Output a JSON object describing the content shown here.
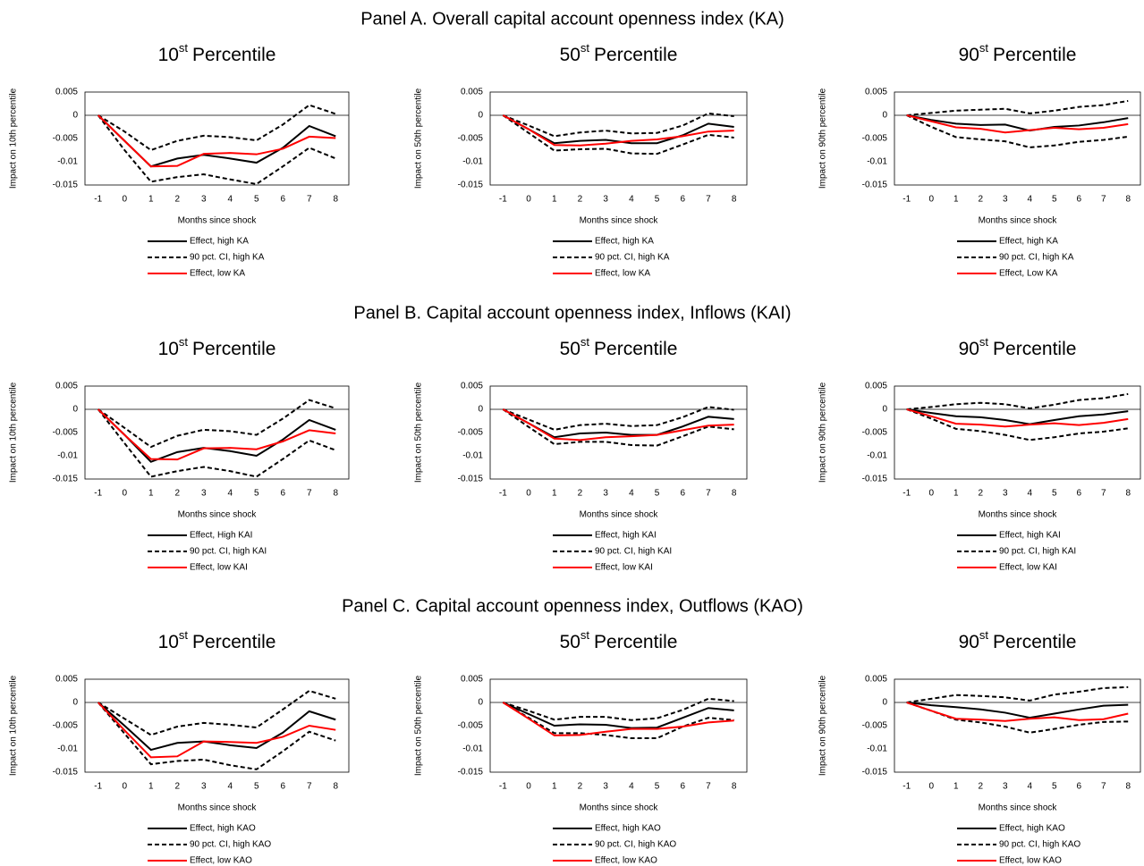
{
  "panels": [
    "Panel A. Overall capital account openness index (KA)",
    "Panel B. Capital account openness index, Inflows (KAI)",
    "Panel C. Capital account openness index, Outflows (KAO)"
  ],
  "chart_data": [
    {
      "type": "line",
      "title": [
        "10",
        "st",
        "Percentile"
      ],
      "x_label": "Months since shock",
      "y_label": "Impact on 10th percentile",
      "x": [
        -1,
        0,
        1,
        2,
        3,
        4,
        5,
        6,
        7,
        8
      ],
      "xlim": [
        -1.5,
        8.5
      ],
      "xticks": [
        -1,
        0,
        1,
        2,
        3,
        4,
        5,
        6,
        7,
        8
      ],
      "ylim": [
        -0.015,
        0.005
      ],
      "yticks": [
        0.005,
        0,
        -0.005,
        -0.01,
        -0.015
      ],
      "series": [
        {
          "name": "Effect, high KA",
          "color": "#000000",
          "style": "solid",
          "values": [
            0,
            -0.0055,
            -0.011,
            -0.0093,
            -0.0085,
            -0.0093,
            -0.0102,
            -0.007,
            -0.0023,
            -0.0045
          ]
        },
        {
          "name": "90 pct. CI, high KA",
          "color": "#000000",
          "style": "dashed",
          "values": [
            0,
            -0.0035,
            -0.0075,
            -0.0055,
            -0.0044,
            -0.0047,
            -0.0054,
            -0.002,
            0.0022,
            0.0003
          ],
          "lower": [
            0,
            -0.0075,
            -0.0143,
            -0.0133,
            -0.0127,
            -0.0138,
            -0.0148,
            -0.011,
            -0.007,
            -0.0093
          ]
        },
        {
          "name": "Effect, low KA",
          "color": "#ff0000",
          "style": "solid",
          "values": [
            0,
            -0.0055,
            -0.011,
            -0.0109,
            -0.0083,
            -0.0081,
            -0.0084,
            -0.0072,
            -0.0046,
            -0.0049
          ]
        }
      ]
    },
    {
      "type": "line",
      "title": [
        "50",
        "st",
        "Percentile"
      ],
      "x_label": "Months since shock",
      "y_label": "Impact on 50th percentile",
      "x": [
        -1,
        0,
        1,
        2,
        3,
        4,
        5,
        6,
        7,
        8
      ],
      "xlim": [
        -1.5,
        8.5
      ],
      "xticks": [
        -1,
        0,
        1,
        2,
        3,
        4,
        5,
        6,
        7,
        8
      ],
      "ylim": [
        -0.015,
        0.005
      ],
      "yticks": [
        0.005,
        0,
        -0.005,
        -0.01,
        -0.015
      ],
      "series": [
        {
          "name": "Effect, high KA",
          "color": "#000000",
          "style": "solid",
          "values": [
            0,
            -0.003,
            -0.006,
            -0.0055,
            -0.0053,
            -0.006,
            -0.006,
            -0.0043,
            -0.0018,
            -0.0025
          ]
        },
        {
          "name": "90 pct. CI, high KA",
          "color": "#000000",
          "style": "dashed",
          "values": [
            0,
            -0.0022,
            -0.0045,
            -0.0037,
            -0.0033,
            -0.0039,
            -0.0038,
            -0.0022,
            0.0004,
            -0.0002
          ],
          "lower": [
            0,
            -0.0038,
            -0.0076,
            -0.0073,
            -0.0072,
            -0.0082,
            -0.0083,
            -0.0063,
            -0.0042,
            -0.0048
          ]
        },
        {
          "name": "Effect, low KA",
          "color": "#ff0000",
          "style": "solid",
          "values": [
            0,
            -0.003,
            -0.0064,
            -0.0065,
            -0.0061,
            -0.0055,
            -0.0052,
            -0.0045,
            -0.0035,
            -0.0033
          ]
        }
      ]
    },
    {
      "type": "line",
      "title": [
        "90",
        "st",
        "Percentile"
      ],
      "x_label": "Months since shock",
      "y_label": "Impact on 90th percentile",
      "x": [
        -1,
        0,
        1,
        2,
        3,
        4,
        5,
        6,
        7,
        8
      ],
      "xlim": [
        -1.5,
        8.5
      ],
      "xticks": [
        -1,
        0,
        1,
        2,
        3,
        4,
        5,
        6,
        7,
        8
      ],
      "ylim": [
        -0.015,
        0.005
      ],
      "yticks": [
        0.005,
        0,
        -0.005,
        -0.01,
        -0.015
      ],
      "series": [
        {
          "name": "Effect, high KA",
          "color": "#000000",
          "style": "solid",
          "values": [
            0,
            -0.001,
            -0.0018,
            -0.0021,
            -0.002,
            -0.0033,
            -0.0025,
            -0.0022,
            -0.0015,
            -0.0006
          ]
        },
        {
          "name": "90 pct. CI, high KA",
          "color": "#000000",
          "style": "dashed",
          "values": [
            0,
            0.0005,
            0.001,
            0.0012,
            0.0014,
            0.0004,
            0.001,
            0.0018,
            0.0022,
            0.0031
          ],
          "lower": [
            0,
            -0.0025,
            -0.0047,
            -0.0052,
            -0.0056,
            -0.0069,
            -0.0065,
            -0.0057,
            -0.0053,
            -0.0046
          ]
        },
        {
          "name": "Effect, Low KA",
          "color": "#ff0000",
          "style": "solid",
          "values": [
            0,
            -0.0013,
            -0.0026,
            -0.0029,
            -0.0037,
            -0.0032,
            -0.0027,
            -0.003,
            -0.0027,
            -0.0019
          ]
        }
      ]
    },
    {
      "type": "line",
      "title": [
        "10",
        "st",
        "Percentile"
      ],
      "x_label": "Months since shock",
      "y_label": "Impact on 10th percentile",
      "x": [
        -1,
        0,
        1,
        2,
        3,
        4,
        5,
        6,
        7,
        8
      ],
      "xlim": [
        -1.5,
        8.5
      ],
      "xticks": [
        -1,
        0,
        1,
        2,
        3,
        4,
        5,
        6,
        7,
        8
      ],
      "ylim": [
        -0.015,
        0.005
      ],
      "yticks": [
        0.005,
        0,
        -0.005,
        -0.01,
        -0.015
      ],
      "series": [
        {
          "name": "Effect, High KAI",
          "color": "#000000",
          "style": "solid",
          "values": [
            0,
            -0.0055,
            -0.0113,
            -0.0092,
            -0.0083,
            -0.009,
            -0.01,
            -0.0065,
            -0.0023,
            -0.0044
          ]
        },
        {
          "name": "90 pct. CI, high KAI",
          "color": "#000000",
          "style": "dashed",
          "values": [
            0,
            -0.004,
            -0.0081,
            -0.0057,
            -0.0044,
            -0.0047,
            -0.0055,
            -0.002,
            0.002,
            0.0002
          ],
          "lower": [
            0,
            -0.0073,
            -0.0145,
            -0.0133,
            -0.0124,
            -0.0133,
            -0.0145,
            -0.0107,
            -0.0067,
            -0.0088
          ]
        },
        {
          "name": "Effect, low KAI",
          "color": "#ff0000",
          "style": "solid",
          "values": [
            0,
            -0.0055,
            -0.0107,
            -0.0108,
            -0.0084,
            -0.0083,
            -0.0086,
            -0.0069,
            -0.0045,
            -0.0052
          ]
        }
      ]
    },
    {
      "type": "line",
      "title": [
        "50",
        "st",
        "Percentile"
      ],
      "x_label": "Months since shock",
      "y_label": "Impact on 50th percentile",
      "x": [
        -1,
        0,
        1,
        2,
        3,
        4,
        5,
        6,
        7,
        8
      ],
      "xlim": [
        -1.5,
        8.5
      ],
      "xticks": [
        -1,
        0,
        1,
        2,
        3,
        4,
        5,
        6,
        7,
        8
      ],
      "ylim": [
        -0.015,
        0.005
      ],
      "yticks": [
        0.005,
        0,
        -0.005,
        -0.01,
        -0.015
      ],
      "series": [
        {
          "name": "Effect, high KAI",
          "color": "#000000",
          "style": "solid",
          "values": [
            0,
            -0.003,
            -0.006,
            -0.0052,
            -0.005,
            -0.0055,
            -0.0055,
            -0.0037,
            -0.0016,
            -0.0021
          ]
        },
        {
          "name": "90 pct. CI, high KAI",
          "color": "#000000",
          "style": "dashed",
          "values": [
            0,
            -0.0022,
            -0.0044,
            -0.0034,
            -0.0031,
            -0.0036,
            -0.0034,
            -0.0017,
            0.0005,
            -0.0001
          ],
          "lower": [
            0,
            -0.0038,
            -0.0075,
            -0.007,
            -0.007,
            -0.0077,
            -0.0078,
            -0.0058,
            -0.0037,
            -0.0043
          ]
        },
        {
          "name": "Effect, low KAI",
          "color": "#ff0000",
          "style": "solid",
          "values": [
            0,
            -0.003,
            -0.0063,
            -0.0066,
            -0.006,
            -0.0058,
            -0.0055,
            -0.0045,
            -0.0035,
            -0.0033
          ]
        }
      ]
    },
    {
      "type": "line",
      "title": [
        "90",
        "st",
        "Percentile"
      ],
      "x_label": "Months since shock",
      "y_label": "Impact on 90th percentile",
      "x": [
        -1,
        0,
        1,
        2,
        3,
        4,
        5,
        6,
        7,
        8
      ],
      "xlim": [
        -1.5,
        8.5
      ],
      "xticks": [
        -1,
        0,
        1,
        2,
        3,
        4,
        5,
        6,
        7,
        8
      ],
      "ylim": [
        -0.015,
        0.005
      ],
      "yticks": [
        0.005,
        0,
        -0.005,
        -0.01,
        -0.015
      ],
      "series": [
        {
          "name": "Effect, high KAI",
          "color": "#000000",
          "style": "solid",
          "values": [
            0,
            -0.0008,
            -0.0015,
            -0.0017,
            -0.0023,
            -0.0032,
            -0.0023,
            -0.0015,
            -0.0011,
            -0.0004
          ]
        },
        {
          "name": "90 pct. CI, high KAI",
          "color": "#000000",
          "style": "dashed",
          "values": [
            0,
            0.0005,
            0.0011,
            0.0014,
            0.0011,
            0.0002,
            0.001,
            0.002,
            0.0024,
            0.0033
          ],
          "lower": [
            0,
            -0.002,
            -0.0042,
            -0.0047,
            -0.0055,
            -0.0066,
            -0.006,
            -0.0052,
            -0.0048,
            -0.0041
          ]
        },
        {
          "name": "Effect, low KAI",
          "color": "#ff0000",
          "style": "solid",
          "values": [
            0,
            -0.0015,
            -0.0031,
            -0.0033,
            -0.0037,
            -0.0033,
            -0.003,
            -0.0034,
            -0.0029,
            -0.0021
          ]
        }
      ]
    },
    {
      "type": "line",
      "title": [
        "10",
        "st",
        "Percentile"
      ],
      "x_label": "Months since shock",
      "y_label": "Impact on 10th percentile",
      "x": [
        -1,
        0,
        1,
        2,
        3,
        4,
        5,
        6,
        7,
        8
      ],
      "xlim": [
        -1.5,
        8.5
      ],
      "xticks": [
        -1,
        0,
        1,
        2,
        3,
        4,
        5,
        6,
        7,
        8
      ],
      "ylim": [
        -0.015,
        0.005
      ],
      "yticks": [
        0.005,
        0,
        -0.005,
        -0.01,
        -0.015
      ],
      "series": [
        {
          "name": "Effect, high KAO",
          "color": "#000000",
          "style": "solid",
          "values": [
            0,
            -0.005,
            -0.0102,
            -0.0087,
            -0.0084,
            -0.0092,
            -0.0098,
            -0.0065,
            -0.0019,
            -0.0037
          ]
        },
        {
          "name": "90 pct. CI, high KAO",
          "color": "#000000",
          "style": "dashed",
          "values": [
            0,
            -0.0035,
            -0.007,
            -0.0052,
            -0.0044,
            -0.0048,
            -0.0054,
            -0.0015,
            0.0025,
            0.0008
          ],
          "lower": [
            0,
            -0.0067,
            -0.0133,
            -0.0126,
            -0.0123,
            -0.0135,
            -0.0144,
            -0.0105,
            -0.0063,
            -0.0082
          ]
        },
        {
          "name": "Effect, low KAO",
          "color": "#ff0000",
          "style": "solid",
          "values": [
            0,
            -0.006,
            -0.0118,
            -0.0116,
            -0.0084,
            -0.0085,
            -0.0087,
            -0.0074,
            -0.005,
            -0.0059
          ]
        }
      ]
    },
    {
      "type": "line",
      "title": [
        "50",
        "st",
        "Percentile"
      ],
      "x_label": "Months since shock",
      "y_label": "Impact on 50th percentile",
      "x": [
        -1,
        0,
        1,
        2,
        3,
        4,
        5,
        6,
        7,
        8
      ],
      "xlim": [
        -1.5,
        8.5
      ],
      "xticks": [
        -1,
        0,
        1,
        2,
        3,
        4,
        5,
        6,
        7,
        8
      ],
      "ylim": [
        -0.015,
        0.005
      ],
      "yticks": [
        0.005,
        0,
        -0.005,
        -0.01,
        -0.015
      ],
      "series": [
        {
          "name": "Effect, high KAO",
          "color": "#000000",
          "style": "solid",
          "values": [
            0,
            -0.0025,
            -0.005,
            -0.0047,
            -0.0048,
            -0.0055,
            -0.0054,
            -0.0033,
            -0.0012,
            -0.0017
          ]
        },
        {
          "name": "90 pct. CI, high KAO",
          "color": "#000000",
          "style": "dashed",
          "values": [
            0,
            -0.0018,
            -0.0037,
            -0.0031,
            -0.0031,
            -0.0038,
            -0.0034,
            -0.0016,
            0.0008,
            0.0003
          ],
          "lower": [
            0,
            -0.0033,
            -0.0066,
            -0.0066,
            -0.007,
            -0.0077,
            -0.0077,
            -0.0052,
            -0.0033,
            -0.0038
          ]
        },
        {
          "name": "Effect, low KAO",
          "color": "#ff0000",
          "style": "solid",
          "values": [
            0,
            -0.0035,
            -0.0071,
            -0.007,
            -0.0063,
            -0.0057,
            -0.0057,
            -0.0052,
            -0.0043,
            -0.0039
          ]
        }
      ]
    },
    {
      "type": "line",
      "title": [
        "90",
        "st",
        "Percentile"
      ],
      "x_label": "Months since shock",
      "y_label": "Impact on 90th percentile",
      "x": [
        -1,
        0,
        1,
        2,
        3,
        4,
        5,
        6,
        7,
        8
      ],
      "xlim": [
        -1.5,
        8.5
      ],
      "xticks": [
        -1,
        0,
        1,
        2,
        3,
        4,
        5,
        6,
        7,
        8
      ],
      "ylim": [
        -0.015,
        0.005
      ],
      "yticks": [
        0.005,
        0,
        -0.005,
        -0.01,
        -0.015
      ],
      "series": [
        {
          "name": "Effect, high KAO",
          "color": "#000000",
          "style": "solid",
          "values": [
            0,
            -0.0006,
            -0.001,
            -0.0015,
            -0.0022,
            -0.0033,
            -0.0024,
            -0.0015,
            -0.0007,
            -0.0005
          ]
        },
        {
          "name": "90 pct. CI, high KAO",
          "color": "#000000",
          "style": "dashed",
          "values": [
            0,
            0.0008,
            0.0016,
            0.0014,
            0.0011,
            0.0004,
            0.0017,
            0.0023,
            0.0031,
            0.0033
          ],
          "lower": [
            0,
            -0.0018,
            -0.0037,
            -0.0043,
            -0.0052,
            -0.0065,
            -0.0057,
            -0.0048,
            -0.0042,
            -0.0041
          ]
        },
        {
          "name": "Effect, low KAO",
          "color": "#ff0000",
          "style": "solid",
          "values": [
            0,
            -0.0018,
            -0.0035,
            -0.0037,
            -0.004,
            -0.0035,
            -0.0032,
            -0.0038,
            -0.0036,
            -0.0024
          ]
        }
      ]
    }
  ]
}
